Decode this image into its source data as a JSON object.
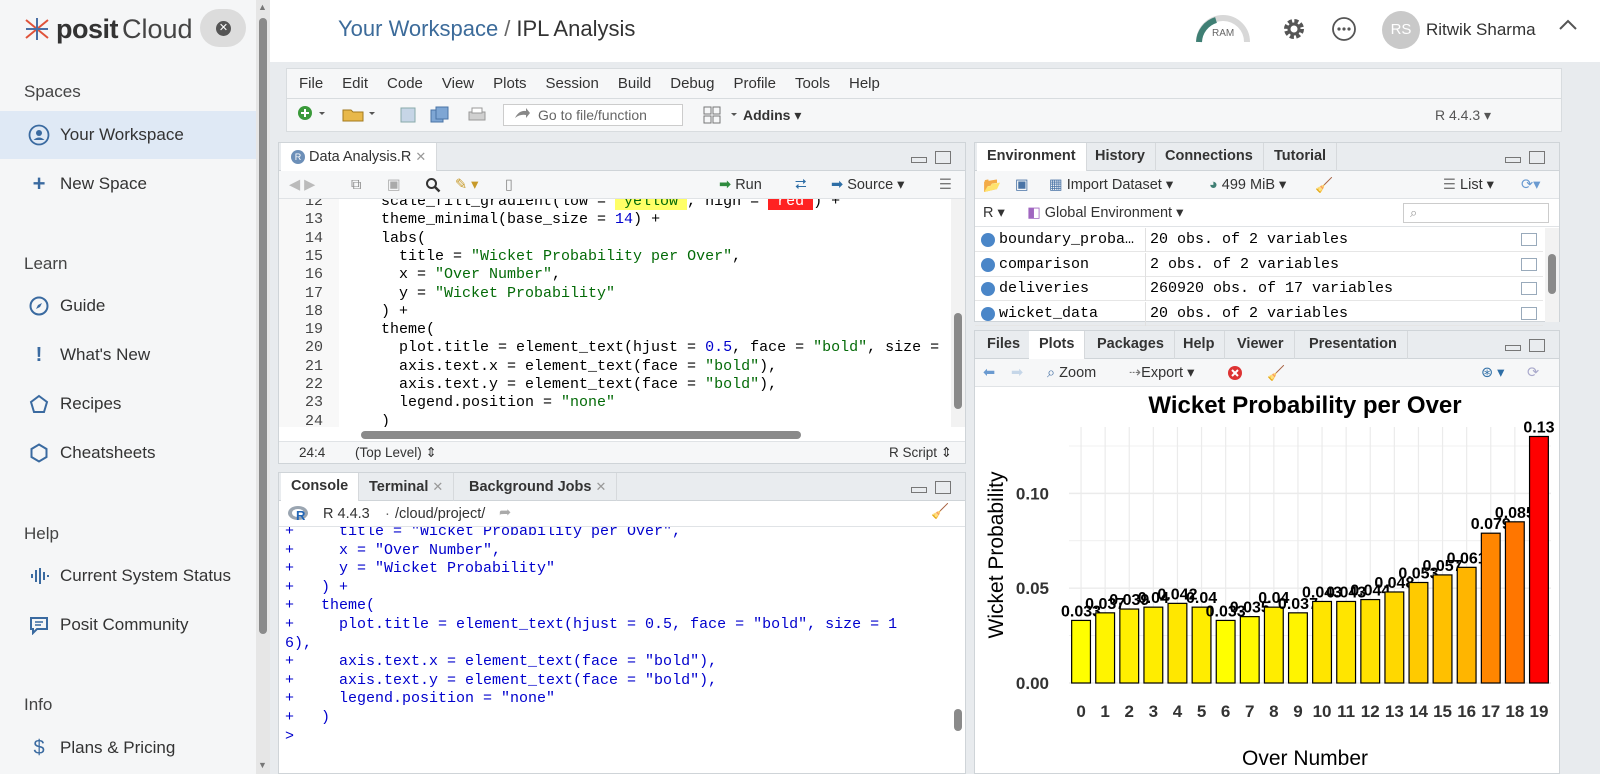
{
  "sidebar": {
    "logo_word": "posit",
    "logo_cloud": "Cloud",
    "sections": [
      {
        "heading": "Spaces",
        "items": [
          {
            "label": "Your Workspace",
            "icon": "user-circle-icon",
            "active": true
          },
          {
            "label": "New Space",
            "icon": "plus-icon"
          }
        ]
      },
      {
        "heading": "Learn",
        "items": [
          {
            "label": "Guide",
            "icon": "compass-icon"
          },
          {
            "label": "What's New",
            "icon": "exclamation-icon"
          },
          {
            "label": "Recipes",
            "icon": "pentagon-icon"
          },
          {
            "label": "Cheatsheets",
            "icon": "hexagon-icon"
          }
        ]
      },
      {
        "heading": "Help",
        "items": [
          {
            "label": "Current System Status",
            "icon": "pulse-icon"
          },
          {
            "label": "Posit Community",
            "icon": "chat-icon"
          }
        ]
      },
      {
        "heading": "Info",
        "items": [
          {
            "label": "Plans & Pricing",
            "icon": "dollar-icon"
          }
        ]
      }
    ]
  },
  "header": {
    "workspace": "Your Workspace",
    "separator": "/",
    "project": "IPL Analysis",
    "ram_label": "RAM",
    "user_initials": "RS",
    "user_name": "Ritwik Sharma"
  },
  "menu": [
    "File",
    "Edit",
    "Code",
    "View",
    "Plots",
    "Session",
    "Build",
    "Debug",
    "Profile",
    "Tools",
    "Help"
  ],
  "toolbar": {
    "goto_placeholder": "Go to file/function",
    "addins": "Addins",
    "r_version": "R 4.4.3"
  },
  "editor": {
    "tab": "Data Analysis.R",
    "run": "Run",
    "source": "Source",
    "lines": [
      {
        "n": "12",
        "segs": [
          [
            "  scale_fill_gradient(low = ",
            ""
          ],
          [
            "\"yellow\"",
            "s"
          ],
          [
            ", high = ",
            ""
          ],
          [
            "\"red\"",
            "s"
          ],
          [
            ") +",
            ""
          ]
        ]
      },
      {
        "n": "13",
        "segs": [
          [
            "  theme_minimal(base_size = ",
            ""
          ],
          [
            "14",
            "n"
          ],
          [
            ") +",
            ""
          ]
        ]
      },
      {
        "n": "14",
        "segs": [
          [
            "  labs(",
            ""
          ]
        ]
      },
      {
        "n": "15",
        "segs": [
          [
            "    title = ",
            ""
          ],
          [
            "\"Wicket Probability per Over\"",
            "s"
          ],
          [
            ",",
            ""
          ]
        ]
      },
      {
        "n": "16",
        "segs": [
          [
            "    x = ",
            ""
          ],
          [
            "\"Over Number\"",
            "s"
          ],
          [
            ",",
            ""
          ]
        ]
      },
      {
        "n": "17",
        "segs": [
          [
            "    y = ",
            ""
          ],
          [
            "\"Wicket Probability\"",
            "s"
          ]
        ]
      },
      {
        "n": "18",
        "segs": [
          [
            "  ) +",
            ""
          ]
        ]
      },
      {
        "n": "19",
        "segs": [
          [
            "  theme(",
            ""
          ]
        ]
      },
      {
        "n": "20",
        "segs": [
          [
            "    plot.title = element_text(hjust = ",
            ""
          ],
          [
            "0.5",
            "n"
          ],
          [
            ", face = ",
            ""
          ],
          [
            "\"bold\"",
            "s"
          ],
          [
            ", size = ",
            ""
          ]
        ]
      },
      {
        "n": "21",
        "segs": [
          [
            "    axis.text.x = element_text(face = ",
            ""
          ],
          [
            "\"bold\"",
            "s"
          ],
          [
            "),",
            ""
          ]
        ]
      },
      {
        "n": "22",
        "segs": [
          [
            "    axis.text.y = element_text(face = ",
            ""
          ],
          [
            "\"bold\"",
            "s"
          ],
          [
            "),",
            ""
          ]
        ]
      },
      {
        "n": "23",
        "segs": [
          [
            "    legend.position = ",
            ""
          ],
          [
            "\"none\"",
            "s"
          ]
        ]
      },
      {
        "n": "24",
        "segs": [
          [
            "  )",
            ""
          ]
        ]
      }
    ],
    "cursor_pos": "24:4",
    "scope": "(Top Level)",
    "lang": "R Script"
  },
  "console": {
    "tabs": [
      "Console",
      "Terminal",
      "Background Jobs"
    ],
    "r_version": "R 4.4.3",
    "path": "/cloud/project/",
    "lines": [
      "+     title = \"Wicket Probability per Over\",",
      "+     x = \"Over Number\",",
      "+     y = \"Wicket Probability\"",
      "+   ) +",
      "+   theme(",
      "+     plot.title = element_text(hjust = 0.5, face = \"bold\", size = 1",
      "6),",
      "+     axis.text.x = element_text(face = \"bold\"),",
      "+     axis.text.y = element_text(face = \"bold\"),",
      "+     legend.position = \"none\"",
      "+   )",
      "> "
    ]
  },
  "environment": {
    "tabs": [
      "Environment",
      "History",
      "Connections",
      "Tutorial"
    ],
    "import": "Import Dataset",
    "memory": "499 MiB",
    "list_mode": "List",
    "lang": "R",
    "env": "Global Environment",
    "rows": [
      {
        "name": "boundary_proba…",
        "value": "20 obs. of 2 variables"
      },
      {
        "name": "comparison",
        "value": "2 obs. of 2 variables"
      },
      {
        "name": "deliveries",
        "value": "260920 obs. of 17 variables"
      },
      {
        "name": "wicket_data",
        "value": "20 obs. of 2 variables"
      }
    ]
  },
  "plots": {
    "tabs": [
      "Files",
      "Plots",
      "Packages",
      "Help",
      "Viewer",
      "Presentation"
    ],
    "zoom": "Zoom",
    "export": "Export"
  },
  "chart_data": {
    "type": "bar",
    "title": "Wicket Probability per Over",
    "xlabel": "Over Number",
    "ylabel": "Wicket Probability",
    "categories": [
      "0",
      "1",
      "2",
      "3",
      "4",
      "5",
      "6",
      "7",
      "8",
      "9",
      "10",
      "11",
      "12",
      "13",
      "14",
      "15",
      "16",
      "17",
      "18",
      "19"
    ],
    "values": [
      0.033,
      0.037,
      0.039,
      0.04,
      0.042,
      0.04,
      0.033,
      0.035,
      0.04,
      0.037,
      0.043,
      0.043,
      0.044,
      0.048,
      0.053,
      0.057,
      0.061,
      0.079,
      0.085,
      0.13
    ],
    "labels": [
      "0.033",
      "0.037",
      "0.039",
      "0.04",
      "0.042",
      "0.04",
      "0.033",
      "0.035",
      "0.04",
      "0.037",
      "0.043",
      "0.043",
      "0.044",
      "0.048",
      "0.053",
      "0.057",
      "0.061",
      "0.079",
      "0.085",
      "0.13"
    ],
    "yticks": [
      "0.00",
      "0.05",
      "0.10"
    ],
    "ylim": [
      0,
      0.135
    ],
    "fill_low": "#ffff00",
    "fill_high": "#ff0000",
    "grid": true,
    "legend": "none"
  }
}
